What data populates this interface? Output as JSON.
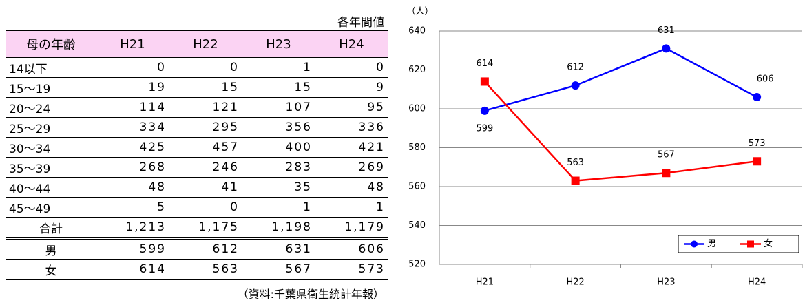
{
  "table": {
    "note": "各年間値",
    "header": [
      "母の年齢",
      "H21",
      "H22",
      "H23",
      "H24"
    ],
    "rows": [
      [
        "14以下",
        "0",
        "0",
        "1",
        "0"
      ],
      [
        "15～19",
        "19",
        "15",
        "15",
        "9"
      ],
      [
        "20～24",
        "114",
        "121",
        "107",
        "95"
      ],
      [
        "25～29",
        "334",
        "295",
        "356",
        "336"
      ],
      [
        "30～34",
        "425",
        "457",
        "400",
        "421"
      ],
      [
        "35～39",
        "268",
        "246",
        "283",
        "269"
      ],
      [
        "40～44",
        "48",
        "41",
        "35",
        "48"
      ],
      [
        "45～49",
        "5",
        "0",
        "1",
        "1"
      ],
      [
        "合計",
        "1,213",
        "1,175",
        "1,198",
        "1,179"
      ],
      [
        "男",
        "599",
        "612",
        "631",
        "606"
      ],
      [
        "女",
        "614",
        "563",
        "567",
        "573"
      ]
    ],
    "source": "（資料:千葉県衛生統計年報）"
  },
  "chart_data": {
    "type": "line",
    "y_label": "（人）",
    "categories": [
      "H21",
      "H22",
      "H23",
      "H24"
    ],
    "series": [
      {
        "name": "男",
        "color": "#0000ff",
        "marker": "circle",
        "values": [
          599,
          612,
          631,
          606
        ]
      },
      {
        "name": "女",
        "color": "#ff0000",
        "marker": "square",
        "values": [
          614,
          563,
          567,
          573
        ]
      }
    ],
    "ylim": [
      520,
      640
    ],
    "yticks": [
      520,
      540,
      560,
      580,
      600,
      620,
      640
    ],
    "grid": true,
    "legend": "lower right"
  }
}
